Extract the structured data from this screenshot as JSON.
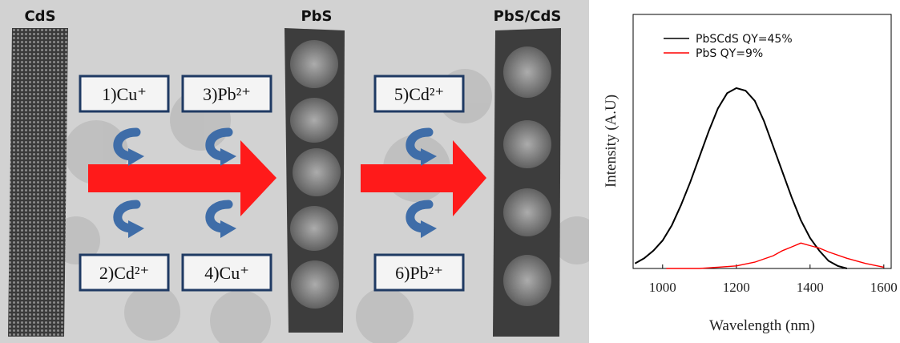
{
  "labels": {
    "cds": "CdS",
    "pbs": "PbS",
    "pbs_cds": "PbS/CdS"
  },
  "steps": [
    "1)Cu⁺",
    "2)Cd²⁺",
    "3)Pb²⁺",
    "4)Cu⁺",
    "5)Cd²⁺",
    "6)Pb²⁺"
  ],
  "chart_data": {
    "type": "line",
    "xlabel": "Wavelength (nm)",
    "ylabel": "Intensity (A.U)",
    "xlim": [
      920,
      1620
    ],
    "ylim": [
      0,
      100
    ],
    "xticks": [
      1000,
      1200,
      1400,
      1600
    ],
    "legend": "upper center",
    "grid": false,
    "series": [
      {
        "name": "PbSCdS QY=45%",
        "color": "#000000",
        "x": [
          925,
          950,
          975,
          1000,
          1025,
          1050,
          1075,
          1100,
          1125,
          1150,
          1175,
          1200,
          1225,
          1250,
          1275,
          1300,
          1325,
          1350,
          1375,
          1400,
          1425,
          1450,
          1475,
          1500
        ],
        "values": [
          2,
          4,
          7,
          11,
          17,
          25,
          34,
          44,
          54,
          63,
          69,
          71,
          70,
          66,
          58,
          48,
          38,
          28,
          19,
          12,
          7,
          3,
          1,
          0
        ]
      },
      {
        "name": "PbS QY=9%",
        "color": "#ff0000",
        "x": [
          1010,
          1050,
          1100,
          1150,
          1200,
          1250,
          1300,
          1325,
          1350,
          1375,
          1400,
          1425,
          1450,
          1500,
          1550,
          1600
        ],
        "values": [
          0,
          0,
          0,
          0.5,
          1,
          2.5,
          5,
          7,
          8.5,
          10,
          9,
          8,
          6.5,
          4,
          2,
          0.5
        ]
      }
    ]
  }
}
